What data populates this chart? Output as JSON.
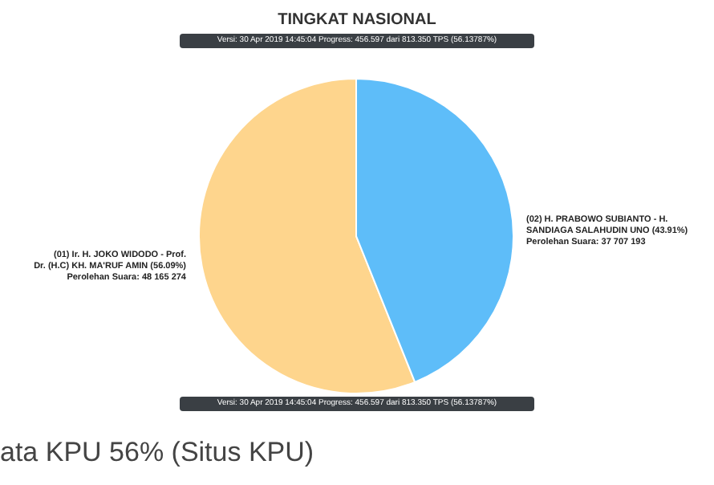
{
  "chart_data": {
    "type": "pie",
    "title": "TINGKAT NASIONAL",
    "subtitle": "Versi: 30 Apr 2019 14:45:04 Progress: 456.597 dari 813.350 TPS (56.13787%)",
    "categories": [
      "(01) Ir. H. JOKO WIDODO - Prof. Dr. (H.C) KH. MA'RUF AMIN (56.09%)",
      "(02) H. PRABOWO SUBIANTO - H. SANDIAGA SALAHUDIN UNO (43.91%)"
    ],
    "values": [
      48165274,
      37707193
    ],
    "value_labels": [
      "Perolehan Suara: 48 165 274",
      "Perolehan Suara: 37 707 193"
    ],
    "colors": [
      "#fed58d",
      "#5ebdf9"
    ],
    "annotations": [
      "Versi: 30 Apr 2019 14:45:04 Progress: 456.597 dari 813.350 TPS (56.13787%)",
      "ata KPU 56% (Situs KPU)"
    ]
  }
}
